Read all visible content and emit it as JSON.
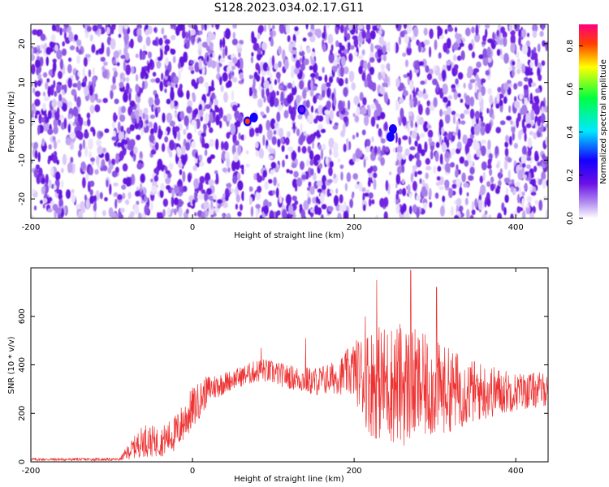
{
  "title": "S128.2023.034.02.17.G11",
  "chart_data": [
    {
      "type": "heatmap",
      "xlabel": "Height of straight line (km)",
      "ylabel": "Frequency (Hz)",
      "xlim": [
        -200,
        440
      ],
      "ylim": [
        -25,
        25
      ],
      "xticks": [
        -200,
        0,
        200,
        400
      ],
      "yticks": [
        20,
        10,
        0,
        -10,
        -20
      ],
      "grid": false,
      "colorbar": {
        "label": "Normalized spectral amplitude",
        "range": [
          0.0,
          0.9
        ],
        "ticks": [
          "0.0",
          "0.2",
          "0.4",
          "0.6",
          "0.8"
        ],
        "colormap": [
          "#ffffff",
          "#b48ef0",
          "#6a10e6",
          "#1500ff",
          "#00e8ff",
          "#00ff40",
          "#ffff00",
          "#ff4000",
          "#ff0080"
        ]
      },
      "gaps_x": [
        67,
        248
      ],
      "hotspots": [
        {
          "x": 68,
          "y": 0,
          "value": 0.8
        },
        {
          "x": 76,
          "y": 1,
          "value": 0.3
        },
        {
          "x": 248,
          "y": -2,
          "value": 0.35
        },
        {
          "x": 245,
          "y": -4,
          "value": 0.3
        },
        {
          "x": 135,
          "y": 3,
          "value": 0.2
        }
      ]
    },
    {
      "type": "line",
      "xlabel": "Height of straight line (km)",
      "ylabel": "SNR (10 * v/v)",
      "xlim": [
        -200,
        440
      ],
      "ylim": [
        0,
        800
      ],
      "xticks": [
        -200,
        0,
        200,
        400
      ],
      "yticks": [
        0,
        200,
        400,
        600
      ],
      "grid": false,
      "color": "#ee3232",
      "envelope": [
        {
          "x": -200,
          "center": 10,
          "amp": 6
        },
        {
          "x": -90,
          "center": 10,
          "amp": 6
        },
        {
          "x": -80,
          "center": 40,
          "amp": 30
        },
        {
          "x": -60,
          "center": 90,
          "amp": 70
        },
        {
          "x": -40,
          "center": 80,
          "amp": 60
        },
        {
          "x": -20,
          "center": 120,
          "amp": 80
        },
        {
          "x": 0,
          "center": 220,
          "amp": 90
        },
        {
          "x": 20,
          "center": 300,
          "amp": 60
        },
        {
          "x": 50,
          "center": 340,
          "amp": 40
        },
        {
          "x": 85,
          "center": 380,
          "amp": 50
        },
        {
          "x": 120,
          "center": 350,
          "amp": 50
        },
        {
          "x": 150,
          "center": 330,
          "amp": 60
        },
        {
          "x": 180,
          "center": 350,
          "amp": 70
        },
        {
          "x": 200,
          "center": 380,
          "amp": 120
        },
        {
          "x": 220,
          "center": 330,
          "amp": 230
        },
        {
          "x": 260,
          "center": 320,
          "amp": 260
        },
        {
          "x": 300,
          "center": 300,
          "amp": 200
        },
        {
          "x": 350,
          "center": 290,
          "amp": 130
        },
        {
          "x": 400,
          "center": 290,
          "amp": 80
        },
        {
          "x": 440,
          "center": 300,
          "amp": 70
        }
      ],
      "peaks": [
        {
          "x": 214,
          "y": 600
        },
        {
          "x": 228,
          "y": 750
        },
        {
          "x": 270,
          "y": 790
        },
        {
          "x": 302,
          "y": 720
        },
        {
          "x": 85,
          "y": 470
        },
        {
          "x": 140,
          "y": 510
        }
      ]
    }
  ]
}
